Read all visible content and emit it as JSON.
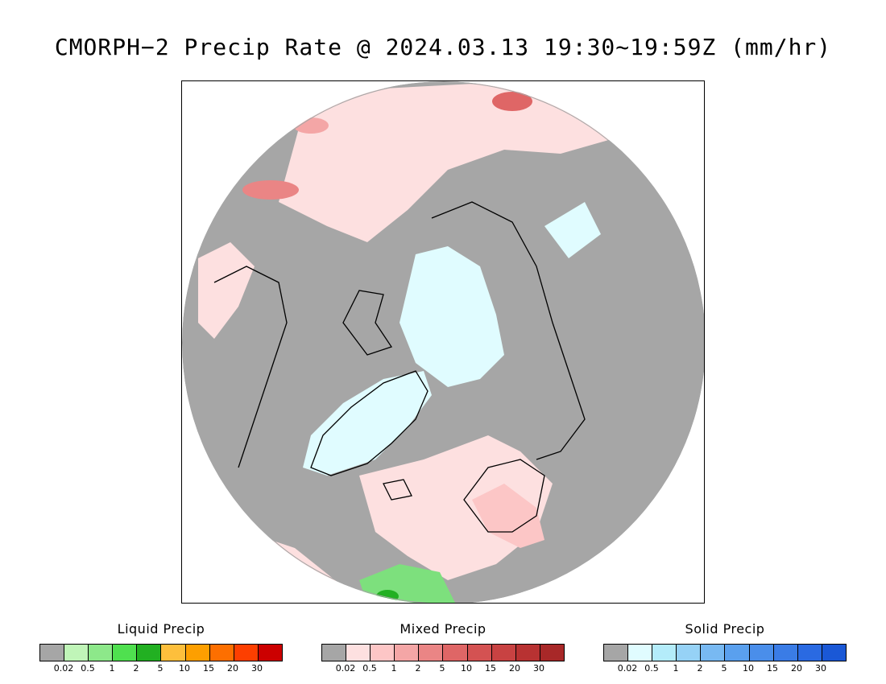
{
  "title": "CMORPH−2 Precip Rate @ 2024.03.13 19:30~19:59Z (mm/hr)",
  "map": {
    "projection": "polar stereographic (north)",
    "colors": {
      "no_precip": "#a6a6a6",
      "mixed_light": "#fde0e0",
      "solid_light": "#e0fbff",
      "liquid_light": "#7de07d",
      "coastline": "#000000"
    }
  },
  "legends": [
    {
      "title": "Liquid Precip",
      "colors": [
        "#a6a6a6",
        "#c0f5b8",
        "#8de88a",
        "#4fe04f",
        "#22b022",
        "#fdbf3c",
        "#fd9f00",
        "#fd6f00",
        "#fd3f00",
        "#cc0000"
      ],
      "ticks": [
        "0.02",
        "0.5",
        "1",
        "2",
        "5",
        "10",
        "15",
        "20",
        "30"
      ]
    },
    {
      "title": "Mixed Precip",
      "colors": [
        "#a6a6a6",
        "#fde0e0",
        "#fdc6c6",
        "#f4a6a6",
        "#ea8585",
        "#df6666",
        "#d45252",
        "#c84242",
        "#b83232",
        "#a82828"
      ],
      "ticks": [
        "0.02",
        "0.5",
        "1",
        "2",
        "5",
        "10",
        "15",
        "20",
        "30"
      ]
    },
    {
      "title": "Solid Precip",
      "colors": [
        "#a6a6a6",
        "#e0fcff",
        "#b4ecfa",
        "#96d2f6",
        "#78b9f2",
        "#5aa0ee",
        "#4a8eea",
        "#3a7ce6",
        "#2a6ae2",
        "#1a58d6"
      ],
      "ticks": [
        "0.02",
        "0.5",
        "1",
        "2",
        "5",
        "10",
        "15",
        "20",
        "30"
      ]
    }
  ]
}
